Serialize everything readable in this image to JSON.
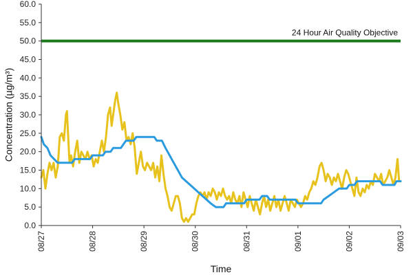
{
  "chart_data": {
    "type": "line",
    "xlabel": "Time",
    "ylabel": "Concentration (µg/m³)",
    "ylim": [
      0,
      60
    ],
    "y_ticks": [
      "0.0",
      "5.0",
      "10.0",
      "15.0",
      "20.0",
      "25.0",
      "30.0",
      "35.0",
      "40.0",
      "45.0",
      "50.0",
      "55.0",
      "60.0"
    ],
    "x_ticks": [
      "08/27",
      "08/28",
      "08/29",
      "08/30",
      "08/31",
      "09/01",
      "09/02",
      "09/03"
    ],
    "xlim_days": [
      0,
      7
    ],
    "grid": false,
    "reference_line": {
      "value": 50,
      "label": "24 Hour Air Quality Objective",
      "color": "#1b7a1b"
    },
    "series": [
      {
        "color": "#e8c21c",
        "points": [
          [
            0.0,
            13
          ],
          [
            0.04,
            15
          ],
          [
            0.08,
            10
          ],
          [
            0.12,
            14
          ],
          [
            0.16,
            17
          ],
          [
            0.2,
            15
          ],
          [
            0.24,
            17
          ],
          [
            0.28,
            13
          ],
          [
            0.32,
            16
          ],
          [
            0.36,
            24
          ],
          [
            0.4,
            25
          ],
          [
            0.44,
            23
          ],
          [
            0.48,
            30
          ],
          [
            0.5,
            31
          ],
          [
            0.52,
            25
          ],
          [
            0.55,
            17
          ],
          [
            0.58,
            19
          ],
          [
            0.62,
            16
          ],
          [
            0.66,
            20
          ],
          [
            0.7,
            23
          ],
          [
            0.74,
            17
          ],
          [
            0.78,
            20
          ],
          [
            0.82,
            19
          ],
          [
            0.86,
            18
          ],
          [
            0.9,
            20
          ],
          [
            0.94,
            18
          ],
          [
            0.98,
            19
          ],
          [
            1.02,
            16
          ],
          [
            1.06,
            18
          ],
          [
            1.1,
            17
          ],
          [
            1.14,
            20
          ],
          [
            1.18,
            23
          ],
          [
            1.22,
            20
          ],
          [
            1.26,
            24
          ],
          [
            1.3,
            30
          ],
          [
            1.34,
            32
          ],
          [
            1.37,
            27
          ],
          [
            1.4,
            30
          ],
          [
            1.44,
            34
          ],
          [
            1.47,
            36
          ],
          [
            1.5,
            33
          ],
          [
            1.54,
            30
          ],
          [
            1.58,
            26
          ],
          [
            1.62,
            28
          ],
          [
            1.66,
            23
          ],
          [
            1.7,
            24
          ],
          [
            1.74,
            22
          ],
          [
            1.78,
            25
          ],
          [
            1.82,
            21
          ],
          [
            1.86,
            14
          ],
          [
            1.9,
            17
          ],
          [
            1.94,
            20
          ],
          [
            1.98,
            16
          ],
          [
            2.02,
            15
          ],
          [
            2.06,
            17
          ],
          [
            2.1,
            16
          ],
          [
            2.14,
            15
          ],
          [
            2.18,
            17
          ],
          [
            2.22,
            13
          ],
          [
            2.26,
            16
          ],
          [
            2.3,
            12
          ],
          [
            2.34,
            19
          ],
          [
            2.38,
            14
          ],
          [
            2.42,
            10
          ],
          [
            2.46,
            8
          ],
          [
            2.5,
            5
          ],
          [
            2.54,
            4
          ],
          [
            2.58,
            6
          ],
          [
            2.62,
            8
          ],
          [
            2.66,
            8
          ],
          [
            2.7,
            6
          ],
          [
            2.74,
            2
          ],
          [
            2.78,
            1
          ],
          [
            2.82,
            2
          ],
          [
            2.86,
            1
          ],
          [
            2.9,
            2
          ],
          [
            2.94,
            3
          ],
          [
            2.98,
            3
          ],
          [
            3.02,
            6
          ],
          [
            3.06,
            8
          ],
          [
            3.1,
            9
          ],
          [
            3.14,
            8
          ],
          [
            3.18,
            9
          ],
          [
            3.22,
            7
          ],
          [
            3.26,
            9
          ],
          [
            3.3,
            8
          ],
          [
            3.34,
            10
          ],
          [
            3.38,
            9
          ],
          [
            3.42,
            7
          ],
          [
            3.46,
            9
          ],
          [
            3.5,
            8
          ],
          [
            3.54,
            10
          ],
          [
            3.58,
            8
          ],
          [
            3.62,
            7
          ],
          [
            3.66,
            8
          ],
          [
            3.7,
            6
          ],
          [
            3.74,
            9
          ],
          [
            3.78,
            7
          ],
          [
            3.82,
            6
          ],
          [
            3.86,
            8
          ],
          [
            3.9,
            5
          ],
          [
            3.94,
            9
          ],
          [
            3.98,
            7
          ],
          [
            4.02,
            5
          ],
          [
            4.06,
            8
          ],
          [
            4.1,
            6
          ],
          [
            4.14,
            4
          ],
          [
            4.18,
            7
          ],
          [
            4.22,
            5
          ],
          [
            4.26,
            3
          ],
          [
            4.3,
            6
          ],
          [
            4.34,
            8
          ],
          [
            4.38,
            5
          ],
          [
            4.42,
            7
          ],
          [
            4.46,
            4
          ],
          [
            4.5,
            6
          ],
          [
            4.54,
            8
          ],
          [
            4.58,
            5
          ],
          [
            4.62,
            7
          ],
          [
            4.66,
            4
          ],
          [
            4.7,
            6
          ],
          [
            4.74,
            8
          ],
          [
            4.78,
            6
          ],
          [
            4.82,
            4
          ],
          [
            4.86,
            7
          ],
          [
            4.9,
            6
          ],
          [
            4.94,
            5
          ],
          [
            4.98,
            7
          ],
          [
            5.02,
            6
          ],
          [
            5.06,
            5
          ],
          [
            5.1,
            6
          ],
          [
            5.14,
            8
          ],
          [
            5.18,
            7
          ],
          [
            5.22,
            9
          ],
          [
            5.26,
            10
          ],
          [
            5.3,
            12
          ],
          [
            5.34,
            11
          ],
          [
            5.38,
            13
          ],
          [
            5.42,
            16
          ],
          [
            5.46,
            17
          ],
          [
            5.5,
            15
          ],
          [
            5.54,
            12
          ],
          [
            5.58,
            14
          ],
          [
            5.62,
            13
          ],
          [
            5.66,
            11
          ],
          [
            5.7,
            13
          ],
          [
            5.74,
            12
          ],
          [
            5.78,
            14
          ],
          [
            5.82,
            12
          ],
          [
            5.86,
            10
          ],
          [
            5.9,
            13
          ],
          [
            5.94,
            15
          ],
          [
            5.98,
            14
          ],
          [
            6.02,
            12
          ],
          [
            6.06,
            10
          ],
          [
            6.1,
            8
          ],
          [
            6.14,
            13
          ],
          [
            6.18,
            9
          ],
          [
            6.22,
            8
          ],
          [
            6.26,
            10
          ],
          [
            6.3,
            9
          ],
          [
            6.34,
            11
          ],
          [
            6.38,
            10
          ],
          [
            6.42,
            12
          ],
          [
            6.46,
            11
          ],
          [
            6.5,
            14
          ],
          [
            6.54,
            13
          ],
          [
            6.58,
            12
          ],
          [
            6.62,
            14
          ],
          [
            6.66,
            11
          ],
          [
            6.7,
            12
          ],
          [
            6.74,
            13
          ],
          [
            6.78,
            15
          ],
          [
            6.82,
            13
          ],
          [
            6.86,
            11
          ],
          [
            6.9,
            13
          ],
          [
            6.94,
            18
          ],
          [
            6.97,
            12
          ],
          [
            7.0,
            12
          ]
        ]
      },
      {
        "color": "#2b9be0",
        "points": [
          [
            0.0,
            24
          ],
          [
            0.05,
            22
          ],
          [
            0.12,
            21
          ],
          [
            0.18,
            19
          ],
          [
            0.25,
            18
          ],
          [
            0.32,
            17
          ],
          [
            0.38,
            17
          ],
          [
            0.6,
            17
          ],
          [
            0.65,
            18
          ],
          [
            0.95,
            18
          ],
          [
            1.0,
            19
          ],
          [
            1.2,
            19
          ],
          [
            1.25,
            20
          ],
          [
            1.35,
            20
          ],
          [
            1.4,
            21
          ],
          [
            1.55,
            21
          ],
          [
            1.6,
            22
          ],
          [
            1.65,
            23
          ],
          [
            1.8,
            23
          ],
          [
            1.85,
            24
          ],
          [
            2.2,
            24
          ],
          [
            2.25,
            23
          ],
          [
            2.35,
            23
          ],
          [
            2.42,
            21
          ],
          [
            2.5,
            19
          ],
          [
            2.58,
            17
          ],
          [
            2.66,
            15
          ],
          [
            2.74,
            13
          ],
          [
            2.82,
            12
          ],
          [
            2.9,
            11
          ],
          [
            2.98,
            10
          ],
          [
            3.06,
            9
          ],
          [
            3.14,
            8
          ],
          [
            3.22,
            7
          ],
          [
            3.3,
            6
          ],
          [
            3.4,
            5
          ],
          [
            3.55,
            5
          ],
          [
            3.6,
            6
          ],
          [
            3.95,
            6
          ],
          [
            4.0,
            7
          ],
          [
            4.25,
            7
          ],
          [
            4.3,
            8
          ],
          [
            4.4,
            8
          ],
          [
            4.45,
            7
          ],
          [
            4.95,
            7
          ],
          [
            5.0,
            6
          ],
          [
            5.45,
            6
          ],
          [
            5.5,
            7
          ],
          [
            5.6,
            8
          ],
          [
            5.7,
            9
          ],
          [
            5.8,
            10
          ],
          [
            5.95,
            10
          ],
          [
            6.0,
            11
          ],
          [
            6.1,
            11
          ],
          [
            6.15,
            12
          ],
          [
            6.6,
            12
          ],
          [
            6.65,
            11
          ],
          [
            6.88,
            11
          ],
          [
            6.92,
            12
          ],
          [
            7.0,
            12
          ]
        ]
      }
    ]
  }
}
